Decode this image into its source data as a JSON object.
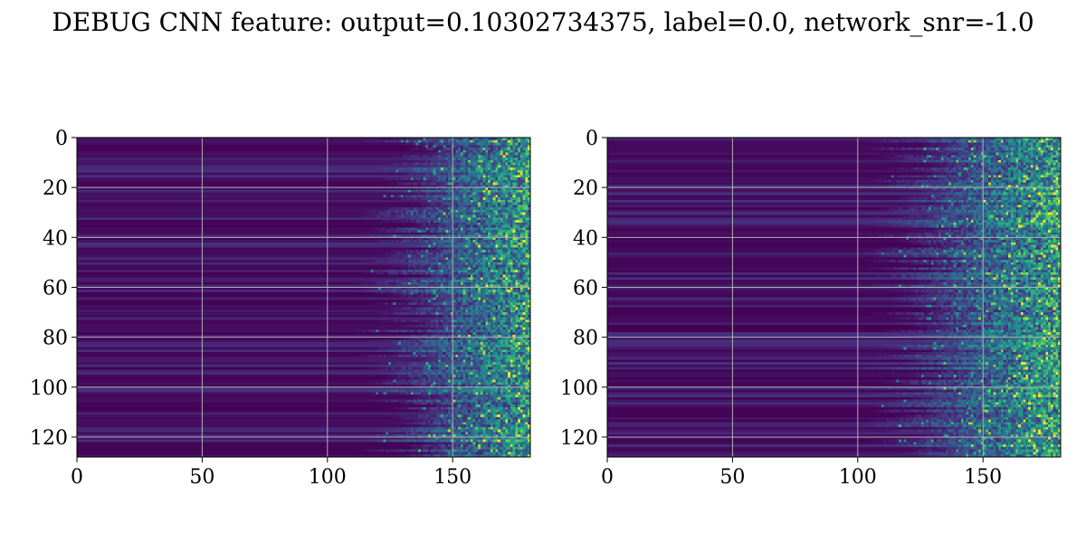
{
  "figure": {
    "title": "DEBUG CNN feature: output=0.10302734375, label=0.0, network_snr=-1.0"
  },
  "colors": {
    "background": "#ffffff",
    "grid": "#b0b0b0",
    "axes": "#000000",
    "colormap": [
      "#440154",
      "#482878",
      "#3e4989",
      "#31688e",
      "#26828e",
      "#1f9e89",
      "#35b779",
      "#6ece58",
      "#b5de2b",
      "#fde725"
    ]
  },
  "chart_data": [
    {
      "type": "heatmap",
      "colormap": "viridis",
      "grid": true,
      "rows": 128,
      "cols": 182,
      "xlim": [
        0,
        181
      ],
      "ylim": [
        128,
        0
      ],
      "y_inverted": true,
      "xticks": [
        0,
        50,
        100,
        150
      ],
      "yticks": [
        0,
        20,
        40,
        60,
        80,
        100,
        120
      ],
      "xlabel": "",
      "ylabel": "",
      "pattern": "near-zero (dark purple) values for columns 0-120; values rise with column index, bright speckled yellow-green activations mostly in columns 140-181; a few brighter horizontal bands",
      "onset_column": 125
    },
    {
      "type": "heatmap",
      "colormap": "viridis",
      "grid": true,
      "rows": 128,
      "cols": 182,
      "xlim": [
        0,
        181
      ],
      "ylim": [
        128,
        0
      ],
      "y_inverted": true,
      "xticks": [
        0,
        50,
        100,
        150
      ],
      "yticks": [
        0,
        20,
        40,
        60,
        80,
        100,
        120
      ],
      "xlabel": "",
      "ylabel": "",
      "pattern": "near-zero (dark purple) values for columns 0-110; noisy teal/green activations from about column 115 increasing to bright speckles near columns 150-181",
      "onset_column": 115
    }
  ]
}
